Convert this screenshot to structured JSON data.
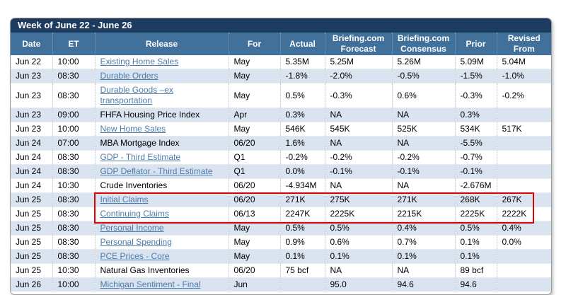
{
  "title": "Week of June 22 - June 26",
  "colors": {
    "title_bar_bg": "#1c3b5e",
    "header_bg": "#41709a",
    "stripe_bg": "#d9e4f0",
    "link": "#4d7ba8",
    "highlight_border": "#dd0202"
  },
  "table": {
    "columns": [
      {
        "id": "date",
        "label": "Date"
      },
      {
        "id": "et",
        "label": "ET"
      },
      {
        "id": "release",
        "label": "Release"
      },
      {
        "id": "for",
        "label": "For"
      },
      {
        "id": "actual",
        "label": "Actual"
      },
      {
        "id": "forecast",
        "label": "Briefing.com\nForecast"
      },
      {
        "id": "consensus",
        "label": "Briefing.com\nConsensus"
      },
      {
        "id": "prior",
        "label": "Prior"
      },
      {
        "id": "revised",
        "label": "Revised\nFrom"
      }
    ],
    "rows": [
      {
        "date": "Jun 22",
        "et": "10:00",
        "release": "Existing Home Sales",
        "is_link": true,
        "for": "May",
        "actual": "5.35M",
        "forecast": "5.25M",
        "consensus": "5.26M",
        "prior": "5.09M",
        "revised": "5.04M",
        "highlighted": false
      },
      {
        "date": "Jun 23",
        "et": "08:30",
        "release": "Durable Orders",
        "is_link": true,
        "for": "May",
        "actual": "-1.8%",
        "forecast": "-2.0%",
        "consensus": "-0.5%",
        "prior": "-1.5%",
        "revised": "-1.0%",
        "highlighted": false
      },
      {
        "date": "Jun 23",
        "et": "08:30",
        "release": "Durable Goods –ex transportation",
        "is_link": true,
        "for": "May",
        "actual": "0.5%",
        "forecast": "-0.3%",
        "consensus": "0.6%",
        "prior": "-0.3%",
        "revised": "-0.2%",
        "highlighted": false
      },
      {
        "date": "Jun 23",
        "et": "09:00",
        "release": "FHFA Housing Price Index",
        "is_link": false,
        "for": "Apr",
        "actual": "0.3%",
        "forecast": "NA",
        "consensus": "NA",
        "prior": "0.3%",
        "revised": "",
        "highlighted": false
      },
      {
        "date": "Jun 23",
        "et": "10:00",
        "release": "New Home Sales",
        "is_link": true,
        "for": "May",
        "actual": "546K",
        "forecast": "545K",
        "consensus": "525K",
        "prior": "534K",
        "revised": "517K",
        "highlighted": false
      },
      {
        "date": "Jun 24",
        "et": "07:00",
        "release": "MBA Mortgage Index",
        "is_link": false,
        "for": "06/20",
        "actual": "1.6%",
        "forecast": "NA",
        "consensus": "NA",
        "prior": "-5.5%",
        "revised": "",
        "highlighted": false
      },
      {
        "date": "Jun 24",
        "et": "08:30",
        "release": "GDP - Third Estimate",
        "is_link": true,
        "for": "Q1",
        "actual": "-0.2%",
        "forecast": "-0.2%",
        "consensus": "-0.2%",
        "prior": "-0.7%",
        "revised": "",
        "highlighted": false
      },
      {
        "date": "Jun 24",
        "et": "08:30",
        "release": "GDP Deflator - Third Estimate",
        "is_link": true,
        "for": "Q1",
        "actual": "0.0%",
        "forecast": "-0.1%",
        "consensus": "-0.1%",
        "prior": "-0.1%",
        "revised": "",
        "highlighted": false
      },
      {
        "date": "Jun 24",
        "et": "10:30",
        "release": "Crude Inventories",
        "is_link": false,
        "for": "06/20",
        "actual": "-4.934M",
        "forecast": "NA",
        "consensus": "NA",
        "prior": "-2.676M",
        "revised": "",
        "highlighted": false
      },
      {
        "date": "Jun 25",
        "et": "08:30",
        "release": "Initial Claims",
        "is_link": true,
        "for": "06/20",
        "actual": "271K",
        "forecast": "275K",
        "consensus": "271K",
        "prior": "268K",
        "revised": "267K",
        "highlighted": true
      },
      {
        "date": "Jun 25",
        "et": "08:30",
        "release": "Continuing Claims",
        "is_link": true,
        "for": "06/13",
        "actual": "2247K",
        "forecast": "2225K",
        "consensus": "2215K",
        "prior": "2225K",
        "revised": "2222K",
        "highlighted": true
      },
      {
        "date": "Jun 25",
        "et": "08:30",
        "release": "Personal Income",
        "is_link": true,
        "for": "May",
        "actual": "0.5%",
        "forecast": "0.5%",
        "consensus": "0.4%",
        "prior": "0.5%",
        "revised": "0.4%",
        "highlighted": false
      },
      {
        "date": "Jun 25",
        "et": "08:30",
        "release": "Personal Spending",
        "is_link": true,
        "for": "May",
        "actual": "0.9%",
        "forecast": "0.6%",
        "consensus": "0.7%",
        "prior": "0.1%",
        "revised": "0.0%",
        "highlighted": false
      },
      {
        "date": "Jun 25",
        "et": "08:30",
        "release": "PCE Prices - Core",
        "is_link": true,
        "for": "May",
        "actual": "0.1%",
        "forecast": "0.1%",
        "consensus": "0.1%",
        "prior": "0.1%",
        "revised": "",
        "highlighted": false
      },
      {
        "date": "Jun 25",
        "et": "10:30",
        "release": "Natural Gas Inventories",
        "is_link": false,
        "for": "06/20",
        "actual": "75 bcf",
        "forecast": "NA",
        "consensus": "NA",
        "prior": "89 bcf",
        "revised": "",
        "highlighted": false
      },
      {
        "date": "Jun 26",
        "et": "10:00",
        "release": "Michigan Sentiment - Final",
        "is_link": true,
        "for": "Jun",
        "actual": "",
        "forecast": "95.0",
        "consensus": "94.6",
        "prior": "94.6",
        "revised": "",
        "highlighted": false
      }
    ]
  }
}
